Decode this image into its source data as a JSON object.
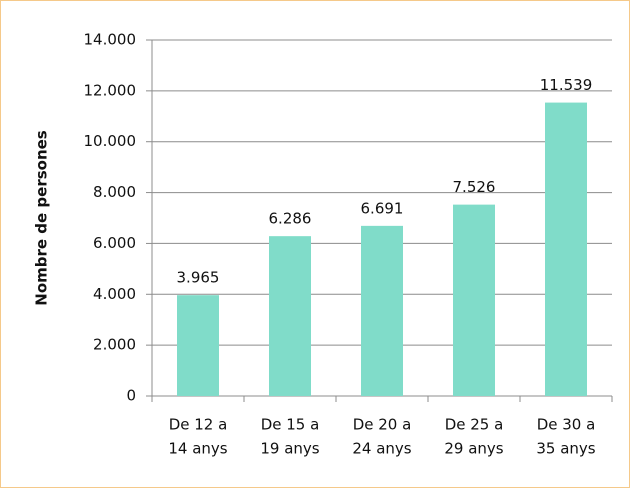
{
  "chart_data": {
    "type": "bar",
    "y_axis_label": "Nombre de persones",
    "categories": [
      [
        "De 12 a",
        "14 anys"
      ],
      [
        "De 15 a",
        "19 anys"
      ],
      [
        "De 20 a",
        "24 anys"
      ],
      [
        "De 25 a",
        "29 anys"
      ],
      [
        "De 30 a",
        "35 anys"
      ]
    ],
    "values": [
      3965,
      6286,
      6691,
      7526,
      11539
    ],
    "value_labels": [
      "3.965",
      "6.286",
      "6.691",
      "7.526",
      "11.539"
    ],
    "color": "#80dcc9",
    "ylim": [
      0,
      14000
    ],
    "yticks": [
      0,
      {
        "value": 2000,
        "label": "2.000"
      },
      {
        "value": 4000,
        "label": "4.000"
      },
      {
        "value": 6000,
        "label": "6.000"
      },
      {
        "value": 8000,
        "label": "8.000"
      },
      {
        "value": 10000,
        "label": "10.000"
      },
      {
        "value": 12000,
        "label": "12.000"
      },
      {
        "value": 14000,
        "label": "14.000"
      }
    ],
    "grid": true
  }
}
